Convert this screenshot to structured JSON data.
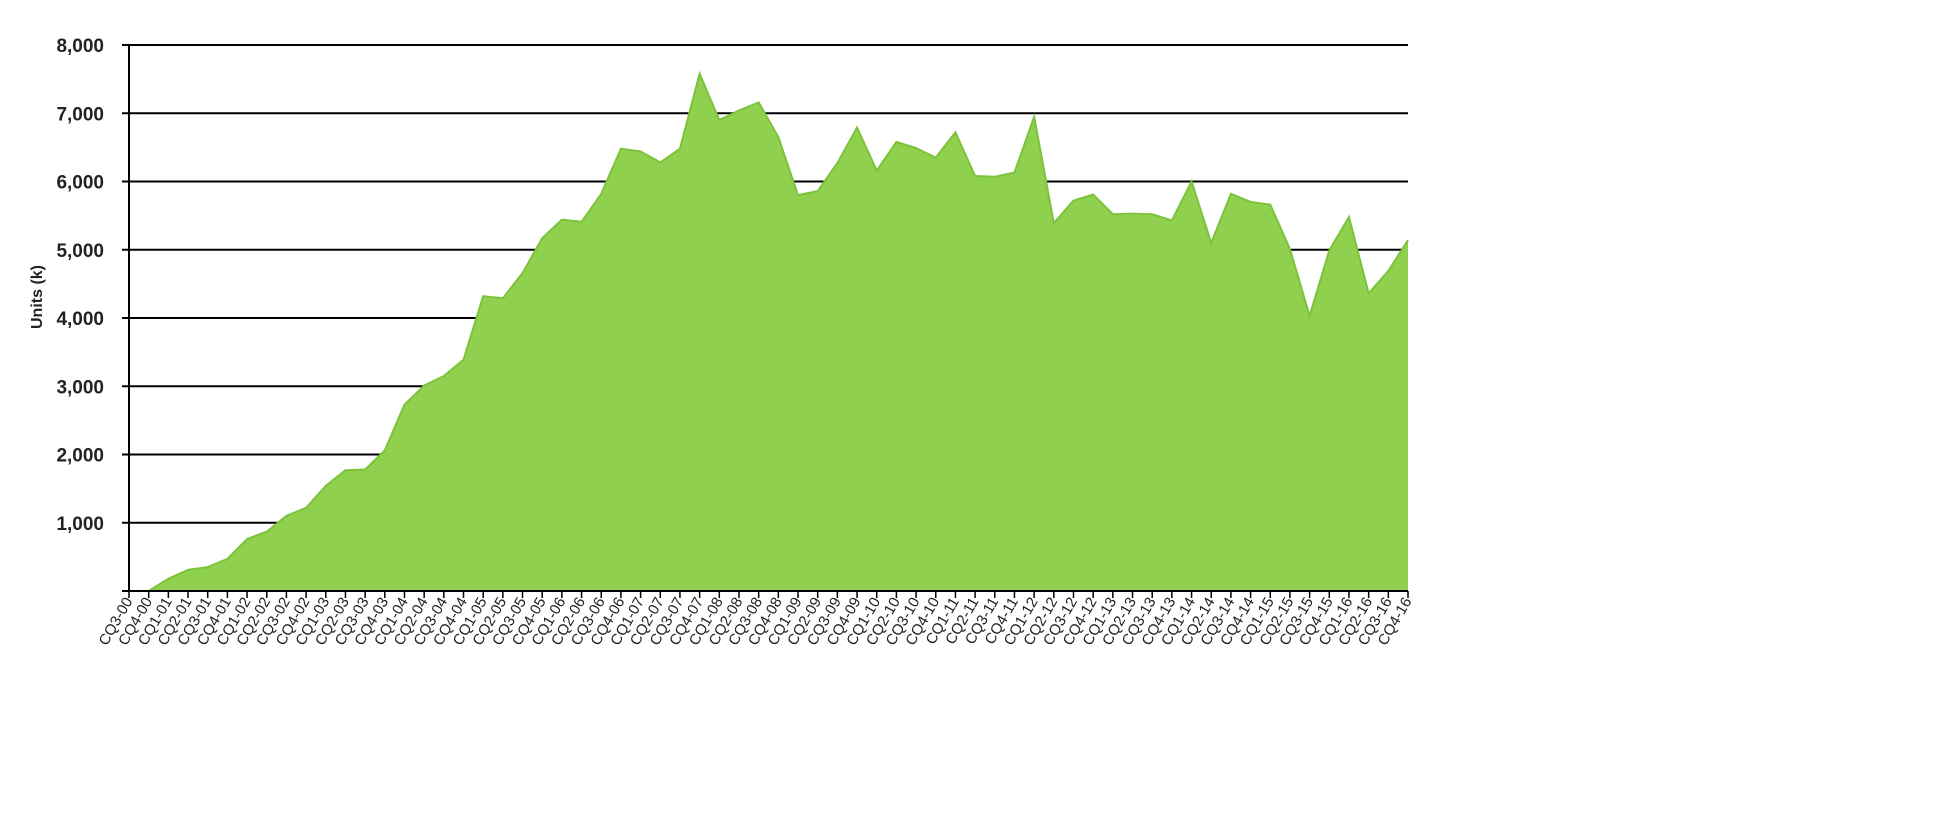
{
  "chart_data": {
    "type": "area",
    "title": "",
    "xlabel": "",
    "ylabel": "Units (k)",
    "ylim": [
      0,
      8000
    ],
    "yticks": [
      0,
      1000,
      2000,
      3000,
      4000,
      5000,
      6000,
      7000,
      8000
    ],
    "ytick_labels": [
      "",
      "1,000",
      "2,000",
      "3,000",
      "4,000",
      "5,000",
      "6,000",
      "7,000",
      "8,000"
    ],
    "grid": true,
    "colors": {
      "fill": "#8fd14f",
      "line": "#7cc23a",
      "grid": "#000000"
    },
    "categories": [
      "CQ3-00",
      "CQ4-00",
      "CQ1-01",
      "CQ2-01",
      "CQ3-01",
      "CQ4-01",
      "CQ1-02",
      "CQ2-02",
      "CQ3-02",
      "CQ4-02",
      "CQ1-03",
      "CQ2-03",
      "CQ3-03",
      "CQ4-03",
      "CQ1-04",
      "CQ2-04",
      "CQ3-04",
      "CQ4-04",
      "CQ1-05",
      "CQ2-05",
      "CQ3-05",
      "CQ4-05",
      "CQ1-06",
      "CQ2-06",
      "CQ3-06",
      "CQ4-06",
      "CQ1-07",
      "CQ2-07",
      "CQ3-07",
      "CQ4-07",
      "CQ1-08",
      "CQ2-08",
      "CQ3-08",
      "CQ4-08",
      "CQ1-09",
      "CQ2-09",
      "CQ3-09",
      "CQ4-09",
      "CQ1-10",
      "CQ2-10",
      "CQ3-10",
      "CQ4-10",
      "CQ1-11",
      "CQ2-11",
      "CQ3-11",
      "CQ4-11",
      "CQ1-12",
      "CQ2-12",
      "CQ3-12",
      "CQ4-12",
      "CQ1-13",
      "CQ2-13",
      "CQ3-13",
      "CQ4-13",
      "CQ1-14",
      "CQ2-14",
      "CQ3-14",
      "CQ4-14",
      "CQ1-15",
      "CQ2-15",
      "CQ3-15",
      "CQ4-15",
      "CQ1-16",
      "CQ2-16",
      "CQ3-16",
      "CQ4-16"
    ],
    "values": [
      0,
      0,
      180,
      310,
      350,
      470,
      760,
      870,
      1100,
      1220,
      1540,
      1770,
      1780,
      2060,
      2730,
      3010,
      3150,
      3390,
      4320,
      4290,
      4660,
      5170,
      5440,
      5410,
      5820,
      6480,
      6440,
      6280,
      6480,
      7580,
      6900,
      7040,
      7160,
      6650,
      5800,
      5860,
      6270,
      6790,
      6160,
      6580,
      6490,
      6350,
      6720,
      6080,
      6070,
      6130,
      6950,
      5390,
      5720,
      5810,
      5520,
      5530,
      5520,
      5430,
      6000,
      5100,
      5820,
      5700,
      5660,
      5010,
      4030,
      4990,
      5480,
      4360,
      4690,
      5140
    ]
  }
}
